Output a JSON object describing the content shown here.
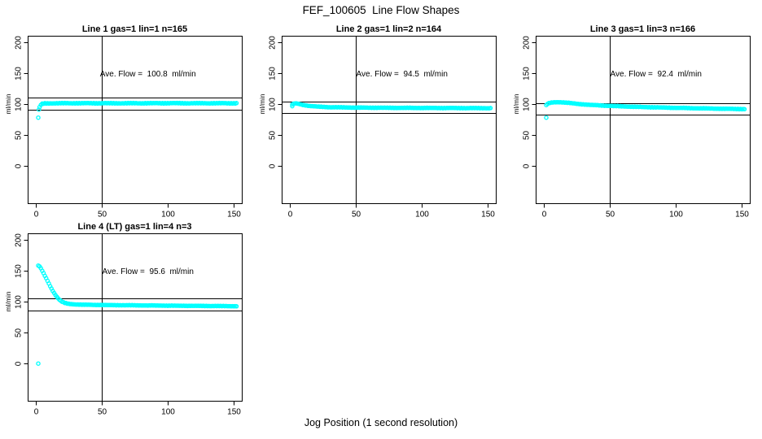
{
  "title": "FEF_100605  Line Flow Shapes",
  "xlabel": "Jog Position (1 second resolution)",
  "colors": {
    "points": "#00ffff",
    "axis": "#000000",
    "background": "#ffffff"
  },
  "chart_data": {
    "type": "scatter",
    "title": "FEF_100605  Line Flow Shapes",
    "xlabel": "Jog Position (1 second resolution)",
    "layout": {
      "rows": 2,
      "cols": 3,
      "filled_cells": 4,
      "legend": "none",
      "grid": "off"
    },
    "shared": {
      "ylabel": "ml/min",
      "xticks": [
        0,
        50,
        100,
        150
      ],
      "yticks": [
        0,
        50,
        100,
        150,
        200
      ],
      "xlim": [
        -6,
        156
      ],
      "ylim": [
        -60,
        210
      ],
      "vline_x": 50
    },
    "panels": [
      {
        "title": "Line 1 gas=1 lin=1 n=165",
        "line": "Line 1",
        "gas": 1,
        "lin": 1,
        "n": 165,
        "ave_flow": 100.8,
        "annotation": "Ave. Flow =  100.8  ml/min",
        "ref_lines": [
          110.9,
          90.7
        ],
        "outliers": [
          [
            2,
            78
          ],
          [
            2.5,
            91
          ]
        ],
        "x_range": [
          3,
          152
        ],
        "scatter": 0.7,
        "keypoints": [
          [
            3,
            94.5
          ],
          [
            4,
            98.5
          ],
          [
            5,
            100.2
          ],
          [
            7,
            100.9
          ],
          [
            12,
            101.2
          ],
          [
            30,
            101.3
          ],
          [
            60,
            101.2
          ],
          [
            100,
            101.3
          ],
          [
            152,
            101.2
          ]
        ]
      },
      {
        "title": "Line 2 gas=1 lin=2 n=164",
        "line": "Line 2",
        "gas": 1,
        "lin": 2,
        "n": 164,
        "ave_flow": 94.5,
        "annotation": "Ave. Flow =  94.5  ml/min",
        "ref_lines": [
          104.0,
          85.1
        ],
        "outliers": [
          [
            2,
            96.5
          ]
        ],
        "x_range": [
          2,
          152
        ],
        "scatter": 0.5,
        "keypoints": [
          [
            2,
            99
          ],
          [
            3,
            100.6
          ],
          [
            5,
            100.9
          ],
          [
            7,
            100.1
          ],
          [
            10,
            98.6
          ],
          [
            14,
            97.2
          ],
          [
            20,
            95.9
          ],
          [
            30,
            94.9
          ],
          [
            50,
            94.2
          ],
          [
            80,
            93.8
          ],
          [
            120,
            93.5
          ],
          [
            152,
            93.3
          ]
        ]
      },
      {
        "title": "Line 3 gas=1 lin=3 n=166",
        "line": "Line 3",
        "gas": 1,
        "lin": 3,
        "n": 166,
        "ave_flow": 92.4,
        "annotation": "Ave. Flow =  92.4  ml/min",
        "ref_lines": [
          101.6,
          83.2
        ],
        "outliers": [
          [
            2,
            78
          ]
        ],
        "x_range": [
          2,
          152
        ],
        "scatter": 0.5,
        "keypoints": [
          [
            2,
            98
          ],
          [
            3,
            100.3
          ],
          [
            5,
            101.9
          ],
          [
            8,
            102.8
          ],
          [
            13,
            102.9
          ],
          [
            18,
            102
          ],
          [
            25,
            100.4
          ],
          [
            35,
            98.6
          ],
          [
            50,
            97
          ],
          [
            70,
            95.4
          ],
          [
            90,
            94.3
          ],
          [
            110,
            93.4
          ],
          [
            130,
            92.6
          ],
          [
            152,
            91.8
          ]
        ]
      },
      {
        "title": "Line 4 (LT) gas=1 lin=4 n=3",
        "line": "Line 4 (LT)",
        "gas": 1,
        "lin": 4,
        "n": 3,
        "ave_flow": 95.6,
        "annotation": "Ave. Flow =  95.6  ml/min",
        "ref_lines": [
          105.2,
          86.0
        ],
        "outliers": [
          [
            2,
            0
          ]
        ],
        "x_range": [
          2,
          152
        ],
        "scatter": 0.4,
        "keypoints": [
          [
            2,
            158
          ],
          [
            3,
            156.5
          ],
          [
            4,
            153.5
          ],
          [
            5,
            149.5
          ],
          [
            6,
            145.5
          ],
          [
            7,
            141.5
          ],
          [
            8,
            137.5
          ],
          [
            9,
            133.5
          ],
          [
            10,
            129
          ],
          [
            11,
            125
          ],
          [
            12,
            121
          ],
          [
            13,
            117.3
          ],
          [
            14,
            113.8
          ],
          [
            15,
            110.7
          ],
          [
            16,
            107.8
          ],
          [
            17,
            105.2
          ],
          [
            18,
            103
          ],
          [
            19,
            101.2
          ],
          [
            20,
            99.7
          ],
          [
            22,
            97.8
          ],
          [
            24,
            96.7
          ],
          [
            27,
            95.9
          ],
          [
            30,
            95.4
          ],
          [
            35,
            95
          ],
          [
            45,
            94.6
          ],
          [
            60,
            94.2
          ],
          [
            80,
            93.8
          ],
          [
            100,
            93.4
          ],
          [
            125,
            93
          ],
          [
            152,
            92.5
          ]
        ]
      }
    ]
  }
}
